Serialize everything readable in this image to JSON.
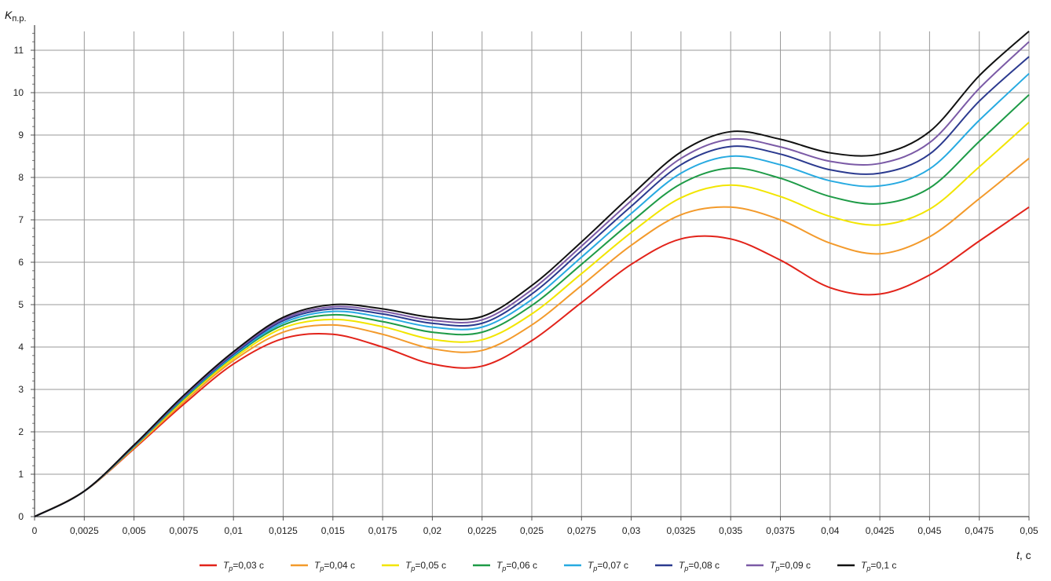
{
  "chart_data": {
    "type": "line",
    "title": "",
    "ylabel_main": "K",
    "ylabel_sub": "п.р.",
    "xlabel_main": "t",
    "xlabel_unit": ", с",
    "xlim": [
      0,
      0.05
    ],
    "ylim": [
      0,
      11.5
    ],
    "grid": true,
    "legend_position": "bottom",
    "x_ticks": [
      "0",
      "0,0025",
      "0,005",
      "0,0075",
      "0,01",
      "0,0125",
      "0,015",
      "0,0175",
      "0,02",
      "0,0225",
      "0,025",
      "0,0275",
      "0,03",
      "0,0325",
      "0,035",
      "0,0375",
      "0,04",
      "0,0425",
      "0,045",
      "0,0475",
      "0,05"
    ],
    "y_ticks": [
      "0",
      "1",
      "2",
      "3",
      "4",
      "5",
      "6",
      "7",
      "8",
      "9",
      "10",
      "11"
    ],
    "x": [
      0,
      0.0025,
      0.005,
      0.0075,
      0.01,
      0.0125,
      0.015,
      0.0175,
      0.02,
      0.0225,
      0.025,
      0.0275,
      0.03,
      0.0325,
      0.035,
      0.0375,
      0.04,
      0.0425,
      0.045,
      0.0475,
      0.05
    ],
    "series": [
      {
        "label_main": "T",
        "label_sub": "p",
        "label_tail": "=0,03 с",
        "color": "#e2231a",
        "values": [
          0,
          0.6,
          1.6,
          2.65,
          3.6,
          4.2,
          4.3,
          4.0,
          3.6,
          3.55,
          4.15,
          5.05,
          5.95,
          6.55,
          6.55,
          6.05,
          5.4,
          5.25,
          5.7,
          6.5,
          7.3
        ]
      },
      {
        "label_main": "T",
        "label_sub": "p",
        "label_tail": "=0,04 с",
        "color": "#f39a2b",
        "values": [
          0,
          0.6,
          1.62,
          2.7,
          3.68,
          4.35,
          4.52,
          4.3,
          3.96,
          3.92,
          4.52,
          5.45,
          6.4,
          7.12,
          7.3,
          7.0,
          6.45,
          6.2,
          6.6,
          7.5,
          8.45
        ]
      },
      {
        "label_main": "T",
        "label_sub": "p",
        "label_tail": "=0,05 с",
        "color": "#f2e500",
        "values": [
          0,
          0.6,
          1.64,
          2.75,
          3.73,
          4.45,
          4.65,
          4.48,
          4.18,
          4.17,
          4.78,
          5.73,
          6.7,
          7.52,
          7.82,
          7.55,
          7.08,
          6.88,
          7.25,
          8.25,
          9.3
        ]
      },
      {
        "label_main": "T",
        "label_sub": "p",
        "label_tail": "=0,06 с",
        "color": "#1e9b47",
        "values": [
          0,
          0.6,
          1.65,
          2.78,
          3.78,
          4.52,
          4.76,
          4.6,
          4.35,
          4.35,
          4.98,
          5.95,
          6.95,
          7.85,
          8.22,
          7.98,
          7.55,
          7.38,
          7.75,
          8.85,
          9.95
        ]
      },
      {
        "label_main": "T",
        "label_sub": "p",
        "label_tail": "=0,07 с",
        "color": "#27aae1",
        "values": [
          0,
          0.6,
          1.66,
          2.8,
          3.8,
          4.57,
          4.84,
          4.7,
          4.47,
          4.47,
          5.12,
          6.12,
          7.15,
          8.1,
          8.5,
          8.3,
          7.92,
          7.8,
          8.2,
          9.35,
          10.45
        ]
      },
      {
        "label_main": "T",
        "label_sub": "p",
        "label_tail": "=0,08 с",
        "color": "#2b3a8f",
        "values": [
          0,
          0.6,
          1.67,
          2.82,
          3.83,
          4.62,
          4.9,
          4.78,
          4.56,
          4.56,
          5.25,
          6.27,
          7.32,
          8.3,
          8.73,
          8.55,
          8.18,
          8.1,
          8.55,
          9.8,
          10.85
        ]
      },
      {
        "label_main": "T",
        "label_sub": "p",
        "label_tail": "=0,09 с",
        "color": "#7b5aa6",
        "values": [
          0,
          0.6,
          1.68,
          2.84,
          3.86,
          4.66,
          4.95,
          4.84,
          4.63,
          4.64,
          5.35,
          6.38,
          7.45,
          8.45,
          8.9,
          8.72,
          8.38,
          8.33,
          8.82,
          10.1,
          11.2
        ]
      },
      {
        "label_main": "T",
        "label_sub": "p",
        "label_tail": "=0,1 с",
        "color": "#111111",
        "values": [
          0,
          0.6,
          1.69,
          2.86,
          3.89,
          4.7,
          5.0,
          4.9,
          4.7,
          4.72,
          5.45,
          6.48,
          7.58,
          8.6,
          9.08,
          8.9,
          8.58,
          8.55,
          9.08,
          10.4,
          11.45
        ]
      }
    ]
  }
}
